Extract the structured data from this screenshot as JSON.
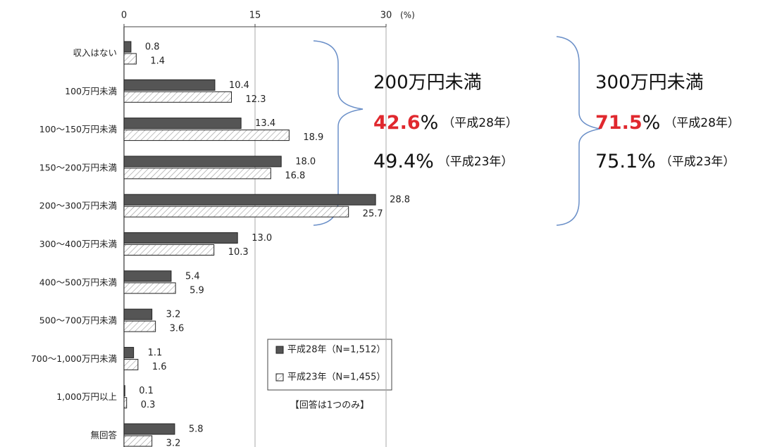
{
  "chart_data": {
    "type": "bar",
    "orientation": "horizontal",
    "categories": [
      "収入はない",
      "100万円未満",
      "100～150万円未満",
      "150～200万円未満",
      "200～300万円未満",
      "300～400万円未満",
      "400～500万円未満",
      "500～700万円未満",
      "700～1,000万円未満",
      "1,000万円以上",
      "無回答"
    ],
    "series": [
      {
        "name": "平成28年（N=1,512）",
        "color": "#555555",
        "pattern": "solid",
        "values": [
          0.8,
          10.4,
          13.4,
          18.0,
          28.8,
          13.0,
          5.4,
          3.2,
          1.1,
          0.1,
          5.8
        ],
        "value_labels": [
          "0.8",
          "10.4",
          "13.4",
          "18.0",
          "28.8",
          "13.0",
          "5.4",
          "3.2",
          "1.1",
          "0.1",
          "5.8"
        ]
      },
      {
        "name": "平成23年（N=1,455）",
        "color": "#ffffff",
        "pattern": "hatch",
        "values": [
          1.4,
          12.3,
          18.9,
          16.8,
          25.7,
          10.3,
          5.9,
          3.6,
          1.6,
          0.3,
          3.2
        ],
        "value_labels": [
          "1.4",
          "12.3",
          "18.9",
          "16.8",
          "25.7",
          "10.3",
          "5.9",
          "3.6",
          "1.6",
          "0.3",
          "3.2"
        ]
      }
    ],
    "xlim": [
      0,
      30
    ],
    "xticks": [
      0,
      15,
      30
    ],
    "x_unit": "(%)",
    "grid": true,
    "note": "【回答は1つのみ】",
    "annotations": [
      {
        "title": "200万円未満",
        "items": [
          {
            "value": 42.6,
            "unit": "%",
            "note": "（平成28年）",
            "color": "#e0282e"
          },
          {
            "value": 49.4,
            "unit": "%",
            "note": "（平成23年）",
            "color": "#111111"
          }
        ]
      },
      {
        "title": "300万円未満",
        "items": [
          {
            "value": 71.5,
            "unit": "%",
            "note": "（平成28年）",
            "color": "#e0282e"
          },
          {
            "value": 75.1,
            "unit": "%",
            "note": "（平成23年）",
            "color": "#111111"
          }
        ]
      }
    ]
  }
}
